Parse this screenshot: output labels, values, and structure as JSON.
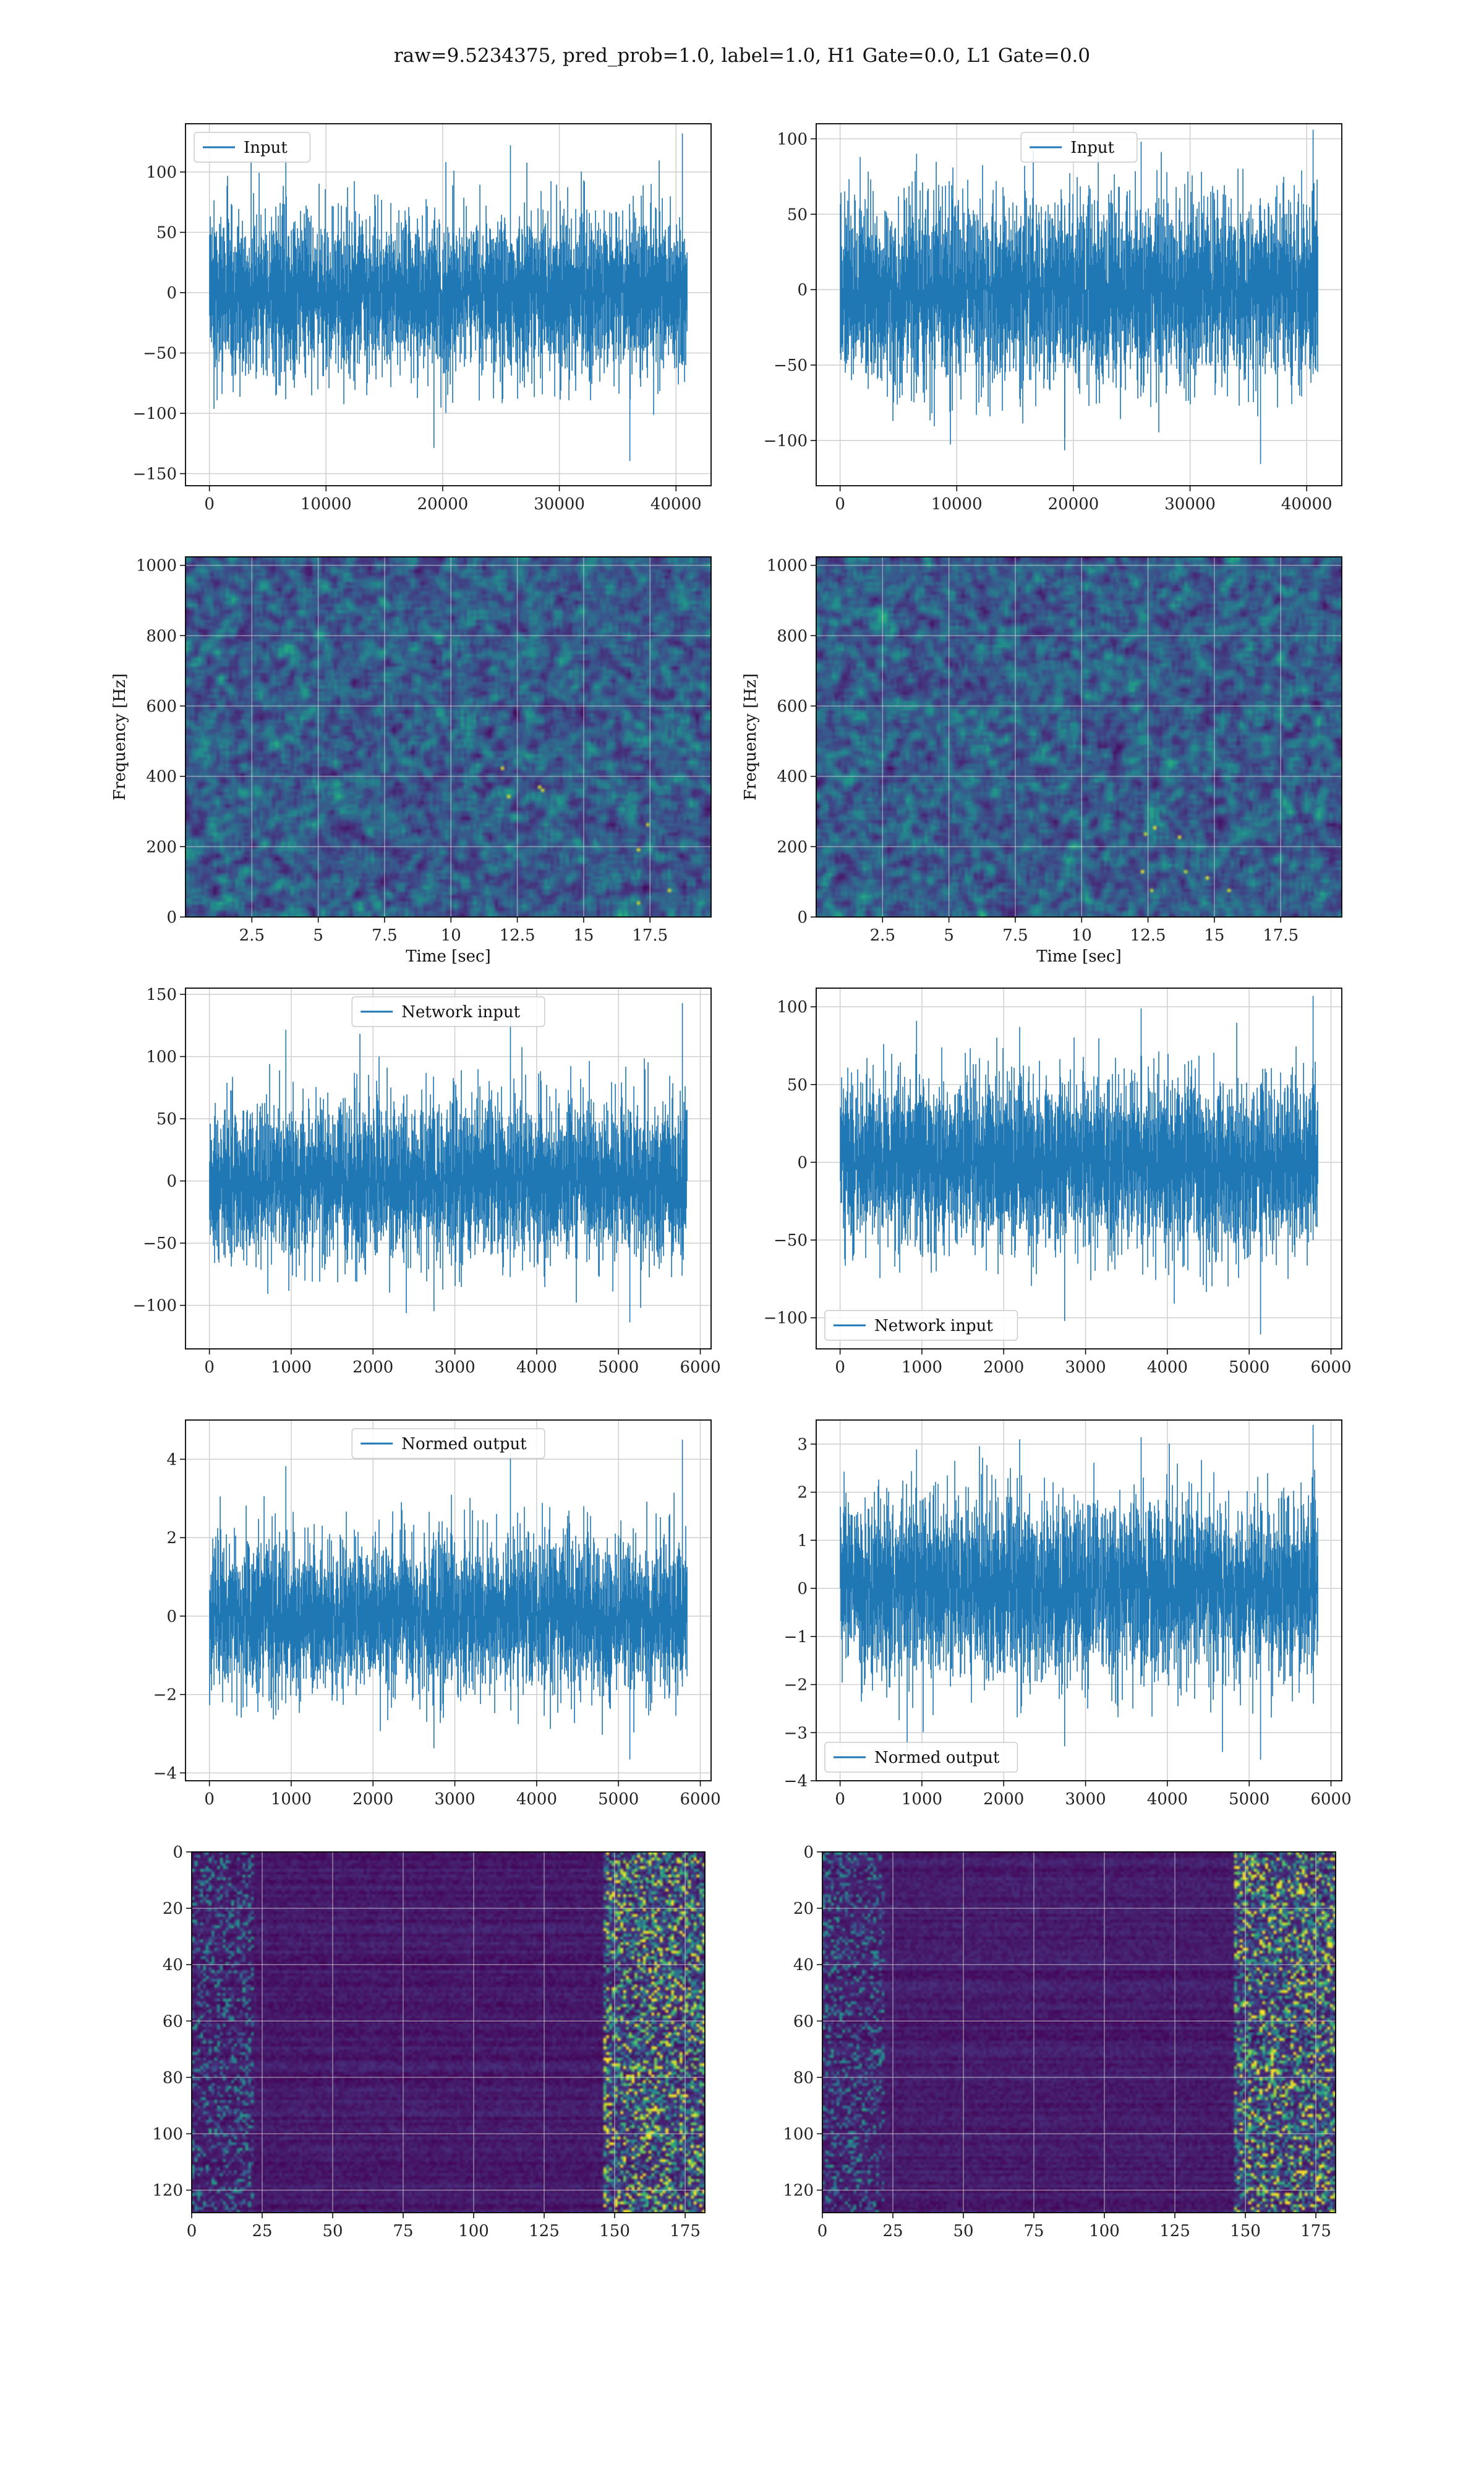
{
  "figure": {
    "title": "raw=9.5234375, pred_prob=1.0, label=1.0, H1 Gate=0.0, L1 Gate=0.0"
  },
  "colors": {
    "line": "#1f77b4",
    "grid": "#cfcfcf",
    "viridis_low": "#3b0f59",
    "viridis_high": "#fde725"
  },
  "chart_data": [
    {
      "id": "input_left",
      "type": "line",
      "series": [
        {
          "name": "Input"
        }
      ],
      "legend_loc": "upper-left",
      "n_points": 40960,
      "xlim": [
        -2048,
        43008
      ],
      "ylim": [
        -160,
        140
      ],
      "xticks": [
        0,
        10000,
        20000,
        30000,
        40000
      ],
      "yticks": [
        -150,
        -100,
        -50,
        0,
        50,
        100
      ],
      "amplitude": 30,
      "spike_max": 132,
      "spike_min": -145,
      "grid": true
    },
    {
      "id": "input_right",
      "type": "line",
      "series": [
        {
          "name": "Input"
        }
      ],
      "legend_loc": "upper-center",
      "n_points": 40960,
      "xlim": [
        -2048,
        43008
      ],
      "ylim": [
        -130,
        110
      ],
      "xticks": [
        0,
        10000,
        20000,
        30000,
        40000
      ],
      "yticks": [
        -100,
        -50,
        0,
        50,
        100
      ],
      "amplitude": 28,
      "spike_max": 106,
      "spike_min": -120,
      "grid": true
    },
    {
      "id": "spectrogram_left",
      "type": "heatmap",
      "xlabel": "Time [sec]",
      "ylabel": "Frequency [Hz]",
      "xlim": [
        0,
        19.8
      ],
      "ylim": [
        0,
        1024
      ],
      "xticks": [
        2.5,
        5.0,
        7.5,
        10.0,
        12.5,
        15.0,
        17.5
      ],
      "yticks": [
        0,
        200,
        400,
        600,
        800,
        1000
      ],
      "grid": true
    },
    {
      "id": "spectrogram_right",
      "type": "heatmap",
      "xlabel": "Time [sec]",
      "ylabel": "Frequency [Hz]",
      "xlim": [
        0,
        19.8
      ],
      "ylim": [
        0,
        1024
      ],
      "xticks": [
        2.5,
        5.0,
        7.5,
        10.0,
        12.5,
        15.0,
        17.5
      ],
      "yticks": [
        0,
        200,
        400,
        600,
        800,
        1000
      ],
      "grid": true
    },
    {
      "id": "network_input_left",
      "type": "line",
      "series": [
        {
          "name": "Network input"
        }
      ],
      "legend_loc": "upper-center",
      "n_points": 5840,
      "xlim": [
        -292,
        6132
      ],
      "ylim": [
        -135,
        155
      ],
      "xticks": [
        0,
        1000,
        2000,
        3000,
        4000,
        5000,
        6000
      ],
      "yticks": [
        -100,
        -50,
        0,
        50,
        100,
        150
      ],
      "amplitude": 28,
      "spike_max": 143,
      "spike_min": -118,
      "grid": true
    },
    {
      "id": "network_input_right",
      "type": "line",
      "series": [
        {
          "name": "Network input"
        }
      ],
      "legend_loc": "lower-left",
      "n_points": 5840,
      "xlim": [
        -292,
        6132
      ],
      "ylim": [
        -120,
        112
      ],
      "xticks": [
        0,
        1000,
        2000,
        3000,
        4000,
        5000,
        6000
      ],
      "yticks": [
        -100,
        -50,
        0,
        50,
        100
      ],
      "amplitude": 25,
      "spike_max": 107,
      "spike_min": -115,
      "grid": true
    },
    {
      "id": "normed_output_left",
      "type": "line",
      "series": [
        {
          "name": "Normed output"
        }
      ],
      "legend_loc": "upper-center",
      "n_points": 5840,
      "xlim": [
        -292,
        6132
      ],
      "ylim": [
        -4.2,
        5.0
      ],
      "xticks": [
        0,
        1000,
        2000,
        3000,
        4000,
        5000,
        6000
      ],
      "yticks": [
        -4,
        -2,
        0,
        2,
        4
      ],
      "amplitude": 0.9,
      "spike_max": 4.5,
      "spike_min": -3.8,
      "grid": true
    },
    {
      "id": "normed_output_right",
      "type": "line",
      "series": [
        {
          "name": "Normed output"
        }
      ],
      "legend_loc": "lower-left",
      "n_points": 5840,
      "xlim": [
        -292,
        6132
      ],
      "ylim": [
        -4.0,
        3.5
      ],
      "xticks": [
        0,
        1000,
        2000,
        3000,
        4000,
        5000,
        6000
      ],
      "yticks": [
        -4,
        -3,
        -2,
        -1,
        0,
        1,
        2,
        3
      ],
      "amplitude": 0.85,
      "spike_max": 3.4,
      "spike_min": -3.7,
      "grid": true
    },
    {
      "id": "feature_map_left",
      "type": "heatmap",
      "xlim": [
        0,
        182
      ],
      "ylim": [
        128,
        0
      ],
      "xticks": [
        0,
        25,
        50,
        75,
        100,
        125,
        150,
        175
      ],
      "yticks": [
        0,
        20,
        40,
        60,
        80,
        100,
        120
      ],
      "grid": true
    },
    {
      "id": "feature_map_right",
      "type": "heatmap",
      "xlim": [
        0,
        182
      ],
      "ylim": [
        128,
        0
      ],
      "xticks": [
        0,
        25,
        50,
        75,
        100,
        125,
        150,
        175
      ],
      "yticks": [
        0,
        20,
        40,
        60,
        80,
        100,
        120
      ],
      "grid": true
    }
  ]
}
